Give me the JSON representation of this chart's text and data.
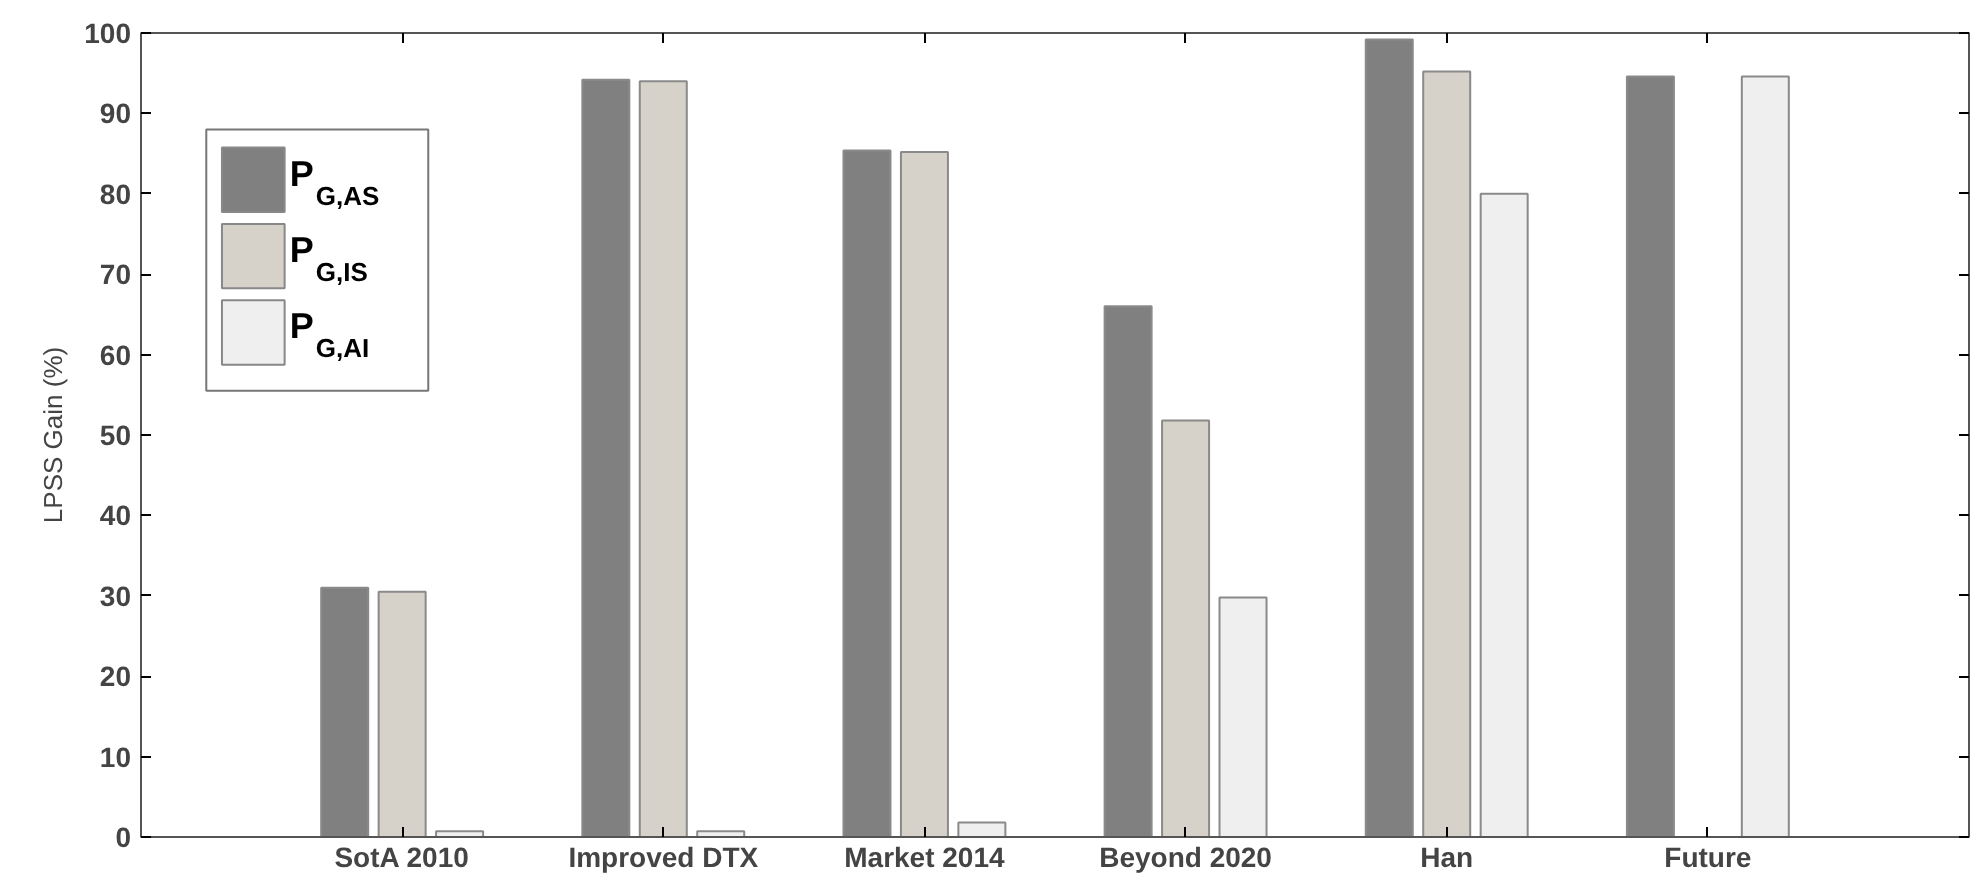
{
  "chart_data": {
    "type": "bar",
    "ylabel": "LPSS Gain (%)",
    "categories": [
      "SotA 2010",
      "Improved DTX",
      "Market 2014",
      "Beyond 2020",
      "Han",
      "Future"
    ],
    "series": [
      {
        "name": "P$_{G,AS}$",
        "color": "#808080",
        "values": [
          31,
          94.2,
          85.4,
          66,
          99.2,
          94.6
        ]
      },
      {
        "name": "P$_{G,IS}$",
        "color": "#d6d1c9",
        "values": [
          30.5,
          94,
          85.2,
          51.8,
          95.2,
          null
        ]
      },
      {
        "name": "P$_{G,AI}$",
        "color": "#efefef",
        "values": [
          0.7,
          0.7,
          1.8,
          29.8,
          80,
          94.6
        ]
      }
    ],
    "ylim": [
      0,
      100
    ],
    "yticks": [
      0,
      10,
      20,
      30,
      40,
      50,
      60,
      70,
      80,
      90,
      100
    ],
    "legend": "top left",
    "grid": false
  }
}
